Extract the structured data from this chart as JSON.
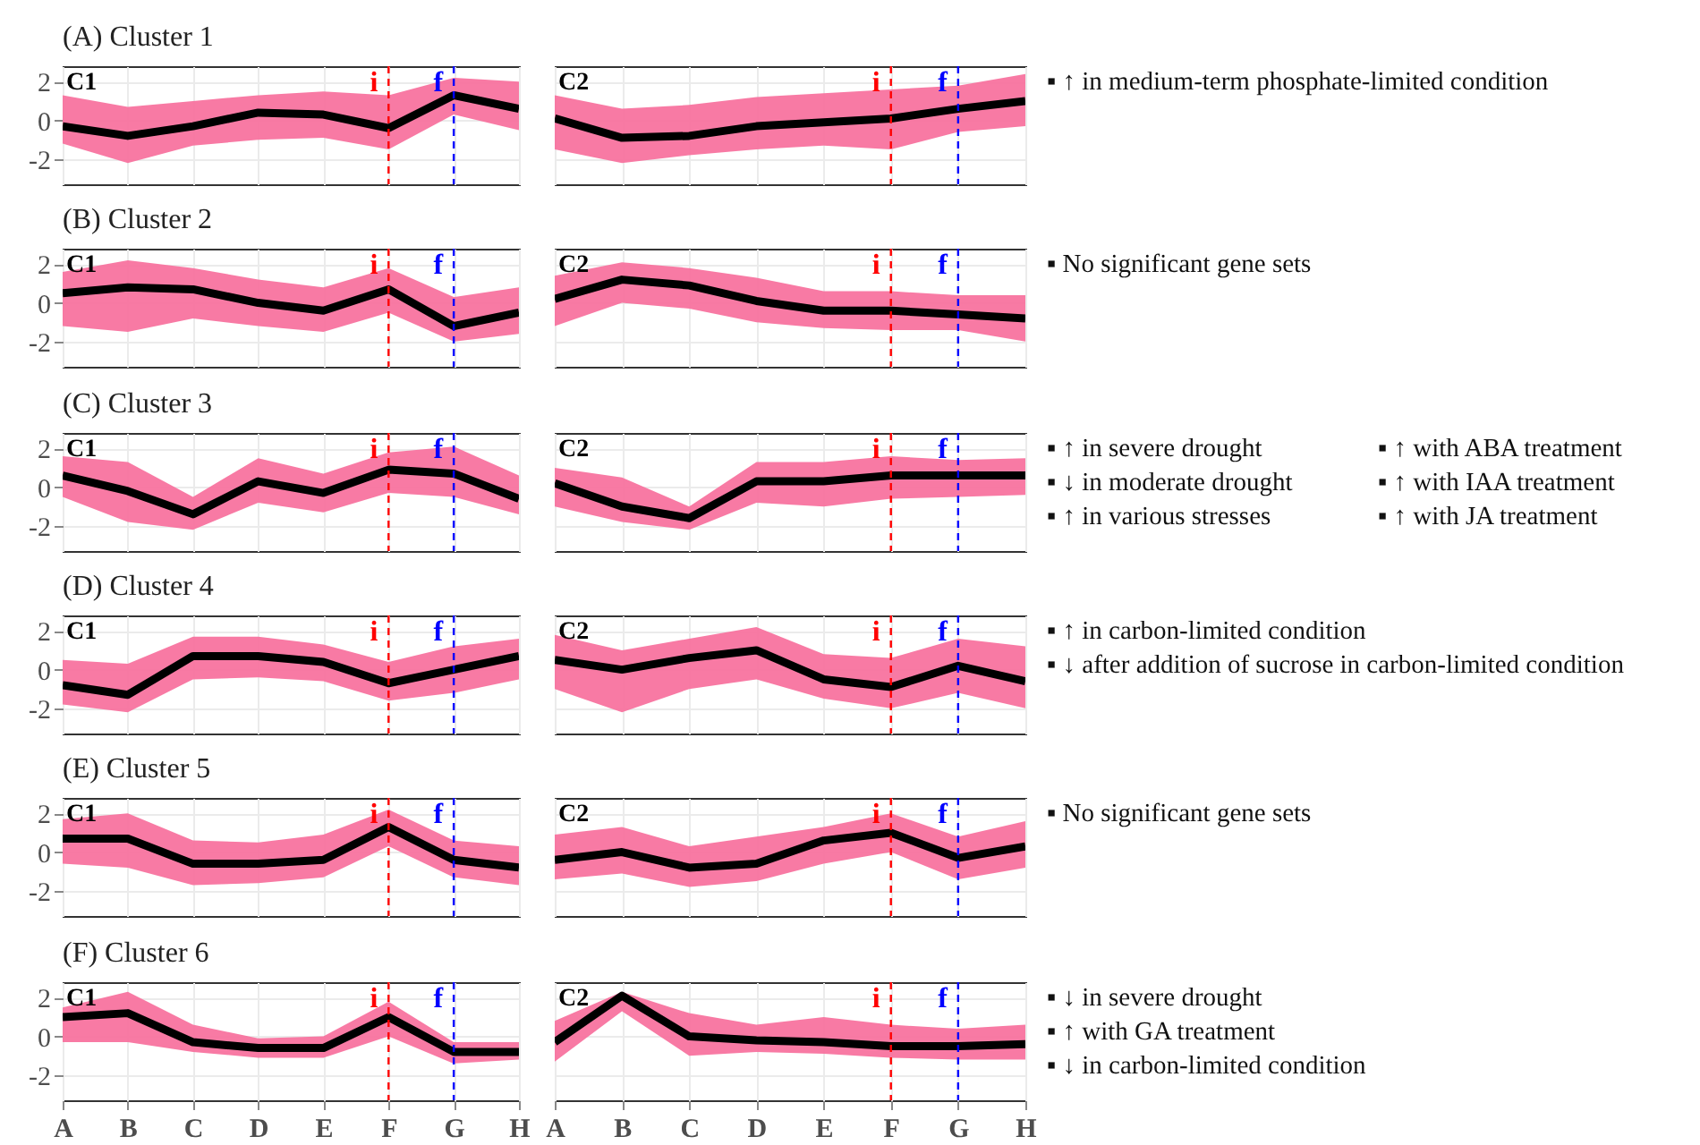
{
  "chart_data": [
    {
      "type": "line",
      "title": "C1",
      "annotations": [
        "(A) Cluster 1"
      ],
      "categories": [
        "A",
        "B",
        "C",
        "D",
        "E",
        "F",
        "G",
        "H"
      ],
      "ylim": [
        -3.3,
        2.8
      ],
      "yticks": [
        -2,
        0,
        2
      ],
      "grid": true,
      "tick_labels": "y",
      "ref_lines": [
        {
          "axis": "x",
          "value": "F",
          "label": "i",
          "color": "#ff0000",
          "line_style": "dashed"
        },
        {
          "axis": "x",
          "value": "G",
          "label": "f",
          "color": "#0000ff",
          "line_style": "dashed"
        }
      ],
      "series": [
        {
          "color": "#000000",
          "values": [
            -0.3,
            -0.8,
            -0.3,
            0.4,
            0.3,
            -0.4,
            1.3,
            0.6
          ],
          "lower": [
            -1.2,
            -2.2,
            -1.3,
            -1.0,
            -0.9,
            -1.5,
            0.3,
            -0.5
          ],
          "upper": [
            1.3,
            0.7,
            1.0,
            1.3,
            1.5,
            1.3,
            2.2,
            2.0
          ]
        }
      ]
    },
    {
      "type": "line",
      "title": "C2",
      "annotations": [
        "▪ ↑ in medium-term phosphate-limited condition"
      ],
      "categories": [
        "A",
        "B",
        "C",
        "D",
        "E",
        "F",
        "G",
        "H"
      ],
      "ylim": [
        -3.3,
        2.8
      ],
      "yticks": [
        -2,
        0,
        2
      ],
      "grid": true,
      "tick_labels": false,
      "ref_lines": [
        {
          "axis": "x",
          "value": "F",
          "label": "i",
          "color": "#ff0000",
          "line_style": "dashed"
        },
        {
          "axis": "x",
          "value": "G",
          "label": "f",
          "color": "#0000ff",
          "line_style": "dashed"
        }
      ],
      "series": [
        {
          "color": "#000000",
          "values": [
            0.1,
            -0.9,
            -0.8,
            -0.3,
            -0.1,
            0.1,
            0.6,
            1.0
          ],
          "lower": [
            -1.5,
            -2.2,
            -1.8,
            -1.5,
            -1.3,
            -1.5,
            -0.6,
            -0.3
          ],
          "upper": [
            1.3,
            0.6,
            0.8,
            1.2,
            1.4,
            1.6,
            1.8,
            2.4
          ]
        }
      ]
    },
    {
      "type": "line",
      "title": "C1",
      "annotations": [
        "(B) Cluster 2"
      ],
      "categories": [
        "A",
        "B",
        "C",
        "D",
        "E",
        "F",
        "G",
        "H"
      ],
      "ylim": [
        -3.3,
        2.8
      ],
      "yticks": [
        -2,
        0,
        2
      ],
      "grid": true,
      "tick_labels": "y",
      "ref_lines": [
        {
          "axis": "x",
          "value": "F",
          "label": "i",
          "color": "#ff0000",
          "line_style": "dashed"
        },
        {
          "axis": "x",
          "value": "G",
          "label": "f",
          "color": "#0000ff",
          "line_style": "dashed"
        }
      ],
      "series": [
        {
          "color": "#000000",
          "values": [
            0.5,
            0.8,
            0.7,
            0.0,
            -0.4,
            0.7,
            -1.2,
            -0.5
          ],
          "lower": [
            -1.2,
            -1.5,
            -0.8,
            -1.2,
            -1.5,
            -0.5,
            -2.0,
            -1.6
          ],
          "upper": [
            1.6,
            2.2,
            1.8,
            1.2,
            0.8,
            1.8,
            0.3,
            0.8
          ]
        }
      ]
    },
    {
      "type": "line",
      "title": "C2",
      "annotations": [
        "▪ No significant gene sets"
      ],
      "categories": [
        "A",
        "B",
        "C",
        "D",
        "E",
        "F",
        "G",
        "H"
      ],
      "ylim": [
        -3.3,
        2.8
      ],
      "yticks": [
        -2,
        0,
        2
      ],
      "grid": true,
      "tick_labels": false,
      "ref_lines": [
        {
          "axis": "x",
          "value": "F",
          "label": "i",
          "color": "#ff0000",
          "line_style": "dashed"
        },
        {
          "axis": "x",
          "value": "G",
          "label": "f",
          "color": "#0000ff",
          "line_style": "dashed"
        }
      ],
      "series": [
        {
          "color": "#000000",
          "values": [
            0.2,
            1.2,
            0.9,
            0.1,
            -0.4,
            -0.4,
            -0.6,
            -0.8
          ],
          "lower": [
            -1.2,
            0.0,
            -0.3,
            -1.0,
            -1.3,
            -1.4,
            -1.4,
            -2.0
          ],
          "upper": [
            1.4,
            2.1,
            1.8,
            1.3,
            0.6,
            0.6,
            0.4,
            0.4
          ]
        }
      ]
    },
    {
      "type": "line",
      "title": "C1",
      "annotations": [
        "(C) Cluster 3"
      ],
      "categories": [
        "A",
        "B",
        "C",
        "D",
        "E",
        "F",
        "G",
        "H"
      ],
      "ylim": [
        -3.3,
        2.8
      ],
      "yticks": [
        -2,
        0,
        2
      ],
      "grid": true,
      "tick_labels": "y",
      "ref_lines": [
        {
          "axis": "x",
          "value": "F",
          "label": "i",
          "color": "#ff0000",
          "line_style": "dashed"
        },
        {
          "axis": "x",
          "value": "G",
          "label": "f",
          "color": "#0000ff",
          "line_style": "dashed"
        }
      ],
      "series": [
        {
          "color": "#000000",
          "values": [
            0.6,
            -0.2,
            -1.4,
            0.3,
            -0.3,
            0.9,
            0.7,
            -0.6
          ],
          "lower": [
            -0.5,
            -1.8,
            -2.2,
            -0.8,
            -1.3,
            -0.3,
            -0.5,
            -1.4
          ],
          "upper": [
            1.6,
            1.3,
            -0.5,
            1.5,
            0.7,
            1.8,
            2.1,
            0.6
          ]
        }
      ]
    },
    {
      "type": "line",
      "title": "C2",
      "annotations": [
        "▪ ↑ in severe drought",
        "▪ ↓ in moderate drought",
        "▪ ↑ in various stresses",
        "▪ ↑ with ABA treatment",
        "▪ ↑ with IAA treatment",
        "▪ ↑ with JA treatment"
      ],
      "categories": [
        "A",
        "B",
        "C",
        "D",
        "E",
        "F",
        "G",
        "H"
      ],
      "ylim": [
        -3.3,
        2.8
      ],
      "yticks": [
        -2,
        0,
        2
      ],
      "grid": true,
      "tick_labels": false,
      "ref_lines": [
        {
          "axis": "x",
          "value": "F",
          "label": "i",
          "color": "#ff0000",
          "line_style": "dashed"
        },
        {
          "axis": "x",
          "value": "G",
          "label": "f",
          "color": "#0000ff",
          "line_style": "dashed"
        }
      ],
      "series": [
        {
          "color": "#000000",
          "values": [
            0.2,
            -1.0,
            -1.6,
            0.3,
            0.3,
            0.6,
            0.6,
            0.6
          ],
          "lower": [
            -1.0,
            -1.8,
            -2.2,
            -0.8,
            -1.0,
            -0.6,
            -0.5,
            -0.4
          ],
          "upper": [
            1.0,
            0.5,
            -1.0,
            1.3,
            1.3,
            1.6,
            1.4,
            1.5
          ]
        }
      ]
    },
    {
      "type": "line",
      "title": "C1",
      "annotations": [
        "(D) Cluster 4"
      ],
      "categories": [
        "A",
        "B",
        "C",
        "D",
        "E",
        "F",
        "G",
        "H"
      ],
      "ylim": [
        -3.3,
        2.8
      ],
      "yticks": [
        -2,
        0,
        2
      ],
      "grid": true,
      "tick_labels": "y",
      "ref_lines": [
        {
          "axis": "x",
          "value": "F",
          "label": "i",
          "color": "#ff0000",
          "line_style": "dashed"
        },
        {
          "axis": "x",
          "value": "G",
          "label": "f",
          "color": "#0000ff",
          "line_style": "dashed"
        }
      ],
      "series": [
        {
          "color": "#000000",
          "values": [
            -0.8,
            -1.3,
            0.7,
            0.7,
            0.4,
            -0.7,
            0.0,
            0.7
          ],
          "lower": [
            -1.8,
            -2.2,
            -0.5,
            -0.4,
            -0.6,
            -1.6,
            -1.2,
            -0.5
          ],
          "upper": [
            0.5,
            0.3,
            1.7,
            1.7,
            1.3,
            0.4,
            1.2,
            1.6
          ]
        }
      ]
    },
    {
      "type": "line",
      "title": "C2",
      "annotations": [
        "▪ ↑ in carbon-limited condition",
        "▪ ↓ after addition of sucrose in carbon-limited condition"
      ],
      "categories": [
        "A",
        "B",
        "C",
        "D",
        "E",
        "F",
        "G",
        "H"
      ],
      "ylim": [
        -3.3,
        2.8
      ],
      "yticks": [
        -2,
        0,
        2
      ],
      "grid": true,
      "tick_labels": false,
      "ref_lines": [
        {
          "axis": "x",
          "value": "F",
          "label": "i",
          "color": "#ff0000",
          "line_style": "dashed"
        },
        {
          "axis": "x",
          "value": "G",
          "label": "f",
          "color": "#0000ff",
          "line_style": "dashed"
        }
      ],
      "series": [
        {
          "color": "#000000",
          "values": [
            0.5,
            0.0,
            0.6,
            1.0,
            -0.5,
            -0.9,
            0.2,
            -0.6
          ],
          "lower": [
            -1.0,
            -2.2,
            -1.0,
            -0.5,
            -1.5,
            -2.0,
            -1.2,
            -2.0
          ],
          "upper": [
            1.8,
            1.0,
            1.6,
            2.2,
            0.8,
            0.6,
            1.6,
            1.2
          ]
        }
      ]
    },
    {
      "type": "line",
      "title": "C1",
      "annotations": [
        "(E) Cluster 5"
      ],
      "categories": [
        "A",
        "B",
        "C",
        "D",
        "E",
        "F",
        "G",
        "H"
      ],
      "ylim": [
        -3.3,
        2.8
      ],
      "yticks": [
        -2,
        0,
        2
      ],
      "grid": true,
      "tick_labels": "y",
      "ref_lines": [
        {
          "axis": "x",
          "value": "F",
          "label": "i",
          "color": "#ff0000",
          "line_style": "dashed"
        },
        {
          "axis": "x",
          "value": "G",
          "label": "f",
          "color": "#0000ff",
          "line_style": "dashed"
        }
      ],
      "series": [
        {
          "color": "#000000",
          "values": [
            0.7,
            0.7,
            -0.6,
            -0.6,
            -0.4,
            1.3,
            -0.4,
            -0.8
          ],
          "lower": [
            -0.6,
            -0.8,
            -1.7,
            -1.6,
            -1.3,
            0.3,
            -1.3,
            -1.7
          ],
          "upper": [
            1.7,
            2.0,
            0.6,
            0.5,
            0.9,
            2.2,
            0.6,
            0.3
          ]
        }
      ]
    },
    {
      "type": "line",
      "title": "C2",
      "annotations": [
        "▪ No significant gene sets"
      ],
      "categories": [
        "A",
        "B",
        "C",
        "D",
        "E",
        "F",
        "G",
        "H"
      ],
      "ylim": [
        -3.3,
        2.8
      ],
      "yticks": [
        -2,
        0,
        2
      ],
      "grid": true,
      "tick_labels": false,
      "ref_lines": [
        {
          "axis": "x",
          "value": "F",
          "label": "i",
          "color": "#ff0000",
          "line_style": "dashed"
        },
        {
          "axis": "x",
          "value": "G",
          "label": "f",
          "color": "#0000ff",
          "line_style": "dashed"
        }
      ],
      "series": [
        {
          "color": "#000000",
          "values": [
            -0.4,
            0.0,
            -0.8,
            -0.6,
            0.6,
            1.0,
            -0.3,
            0.3
          ],
          "lower": [
            -1.4,
            -1.1,
            -1.8,
            -1.5,
            -0.6,
            0.0,
            -1.4,
            -0.8
          ],
          "upper": [
            0.9,
            1.3,
            0.3,
            0.8,
            1.3,
            2.0,
            0.8,
            1.6
          ]
        }
      ]
    },
    {
      "type": "line",
      "title": "C1",
      "annotations": [
        "(F) Cluster 6"
      ],
      "categories": [
        "A",
        "B",
        "C",
        "D",
        "E",
        "F",
        "G",
        "H"
      ],
      "ylim": [
        -3.3,
        2.8
      ],
      "yticks": [
        -2,
        0,
        2
      ],
      "grid": true,
      "ref_lines": [
        {
          "axis": "x",
          "value": "F",
          "label": "i",
          "color": "#ff0000",
          "line_style": "dashed"
        },
        {
          "axis": "x",
          "value": "G",
          "label": "f",
          "color": "#0000ff",
          "line_style": "dashed"
        }
      ],
      "series": [
        {
          "color": "#000000",
          "values": [
            1.0,
            1.2,
            -0.3,
            -0.6,
            -0.6,
            1.0,
            -0.8,
            -0.8
          ],
          "lower": [
            -0.3,
            -0.3,
            -0.8,
            -1.1,
            -1.1,
            0.0,
            -1.4,
            -1.2
          ],
          "upper": [
            1.5,
            2.3,
            0.6,
            -0.1,
            0.0,
            1.8,
            -0.3,
            -0.3
          ]
        }
      ]
    },
    {
      "type": "line",
      "title": "C2",
      "annotations": [
        "▪ ↓ in severe drought",
        "▪ ↑ with GA treatment",
        "▪ ↓ in carbon-limited condition"
      ],
      "categories": [
        "A",
        "B",
        "C",
        "D",
        "E",
        "F",
        "G",
        "H"
      ],
      "ylim": [
        -3.3,
        2.8
      ],
      "yticks": [
        -2,
        0,
        2
      ],
      "grid": true,
      "tick_labels": "x",
      "ref_lines": [
        {
          "axis": "x",
          "value": "F",
          "label": "i",
          "color": "#ff0000",
          "line_style": "dashed"
        },
        {
          "axis": "x",
          "value": "G",
          "label": "f",
          "color": "#0000ff",
          "line_style": "dashed"
        }
      ],
      "series": [
        {
          "color": "#000000",
          "values": [
            -0.3,
            2.1,
            0.0,
            -0.2,
            -0.3,
            -0.5,
            -0.5,
            -0.4
          ],
          "lower": [
            -1.3,
            1.3,
            -1.0,
            -0.8,
            -0.9,
            -1.1,
            -1.2,
            -1.2
          ],
          "upper": [
            0.8,
            2.3,
            1.2,
            0.6,
            1.0,
            0.6,
            0.4,
            0.6
          ]
        }
      ]
    }
  ]
}
